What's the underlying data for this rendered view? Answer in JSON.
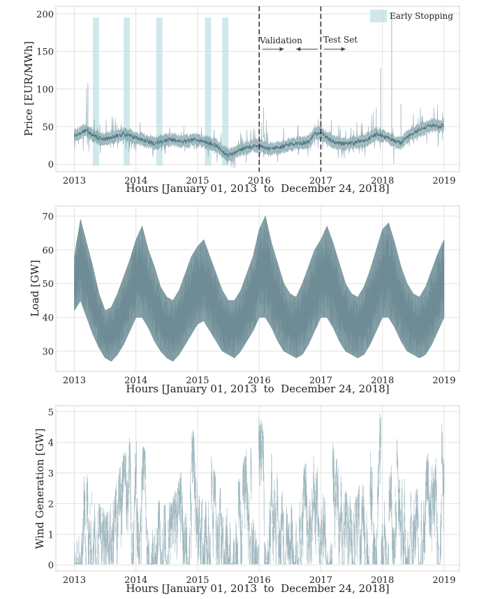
{
  "chart_data": [
    {
      "type": "line",
      "id": "price",
      "title": "",
      "xlabel": "Hours [January 01, 2013  to  December 24, 2018]",
      "ylabel": "Price [EUR/MWh]",
      "xlim": [
        2012.7,
        2019.25
      ],
      "ylim": [
        -10,
        210
      ],
      "x_ticks": [
        2013,
        2014,
        2015,
        2016,
        2017,
        2018,
        2019
      ],
      "y_ticks": [
        0,
        50,
        100,
        150,
        200
      ],
      "grid": true,
      "series": [
        {
          "name": "Price",
          "color": "#5b8590",
          "x": [
            2013.0,
            2013.1,
            2013.2,
            2013.3,
            2013.4,
            2013.5,
            2013.6,
            2013.7,
            2013.8,
            2013.9,
            2014.0,
            2014.1,
            2014.2,
            2014.3,
            2014.4,
            2014.5,
            2014.6,
            2014.7,
            2014.8,
            2014.9,
            2015.0,
            2015.1,
            2015.2,
            2015.3,
            2015.4,
            2015.5,
            2015.6,
            2015.7,
            2015.8,
            2015.9,
            2016.0,
            2016.1,
            2016.2,
            2016.3,
            2016.4,
            2016.5,
            2016.6,
            2016.7,
            2016.8,
            2016.9,
            2017.0,
            2017.1,
            2017.2,
            2017.3,
            2017.4,
            2017.5,
            2017.6,
            2017.7,
            2017.8,
            2017.9,
            2018.0,
            2018.1,
            2018.2,
            2018.3,
            2018.4,
            2018.5,
            2018.6,
            2018.7,
            2018.8,
            2018.9,
            2019.0
          ],
          "mean": [
            38,
            42,
            45,
            38,
            35,
            33,
            36,
            38,
            40,
            38,
            35,
            33,
            30,
            28,
            30,
            32,
            33,
            31,
            30,
            32,
            33,
            30,
            28,
            25,
            18,
            12,
            15,
            20,
            22,
            24,
            25,
            22,
            20,
            22,
            24,
            26,
            27,
            28,
            30,
            40,
            42,
            35,
            30,
            28,
            27,
            28,
            30,
            31,
            35,
            40,
            38,
            35,
            30,
            28,
            36,
            42,
            45,
            48,
            52,
            50,
            52
          ],
          "low": [
            25,
            28,
            22,
            20,
            18,
            22,
            25,
            28,
            25,
            22,
            20,
            18,
            14,
            12,
            16,
            18,
            16,
            14,
            15,
            18,
            20,
            16,
            12,
            8,
            3,
            0,
            2,
            5,
            8,
            10,
            10,
            8,
            6,
            8,
            10,
            12,
            14,
            15,
            16,
            22,
            25,
            18,
            15,
            14,
            12,
            14,
            15,
            16,
            18,
            20,
            18,
            15,
            3,
            10,
            18,
            22,
            25,
            28,
            5,
            25,
            30
          ],
          "high": [
            62,
            85,
            108,
            60,
            55,
            50,
            58,
            60,
            62,
            58,
            55,
            52,
            48,
            45,
            48,
            50,
            52,
            50,
            48,
            50,
            55,
            50,
            45,
            40,
            35,
            28,
            32,
            36,
            40,
            42,
            45,
            75,
            38,
            40,
            42,
            44,
            46,
            48,
            55,
            80,
            70,
            60,
            52,
            48,
            46,
            48,
            50,
            52,
            60,
            75,
            128,
            80,
            60,
            55,
            62,
            68,
            72,
            78,
            80,
            75,
            78
          ]
        }
      ],
      "early_stopping_spans": [
        [
          2013.3,
          2013.4
        ],
        [
          2013.8,
          2013.9
        ],
        [
          2014.33,
          2014.43
        ],
        [
          2015.12,
          2015.22
        ],
        [
          2015.4,
          2015.5
        ]
      ],
      "early_stopping_top": 195,
      "validation_lines": [
        2016.0,
        2017.0
      ],
      "legend": {
        "label": "Early Stopping",
        "position": "top-right"
      },
      "annotations": [
        {
          "text": "Validation",
          "x": 2016.05,
          "y": 162
        },
        {
          "text": "Test Set",
          "x": 2017.06,
          "y": 162
        }
      ],
      "arrows": [
        {
          "from": 2016.05,
          "to": 2016.4,
          "y": 153
        },
        {
          "from": 2016.95,
          "to": 2016.6,
          "y": 153
        },
        {
          "from": 2017.05,
          "to": 2017.4,
          "y": 153
        }
      ]
    },
    {
      "type": "line",
      "id": "load",
      "title": "",
      "xlabel": "Hours [January 01, 2013  to  December 24, 2018]",
      "ylabel": "Load [GW]",
      "xlim": [
        2012.7,
        2019.25
      ],
      "ylim": [
        24,
        73
      ],
      "x_ticks": [
        2013,
        2014,
        2015,
        2016,
        2017,
        2018,
        2019
      ],
      "y_ticks": [
        30,
        40,
        50,
        60,
        70
      ],
      "grid": true,
      "series": [
        {
          "name": "Load",
          "color": "#6f8e98",
          "x": [
            2013.0,
            2013.1,
            2013.2,
            2013.3,
            2013.4,
            2013.5,
            2013.6,
            2013.7,
            2013.8,
            2013.9,
            2014.0,
            2014.1,
            2014.2,
            2014.3,
            2014.4,
            2014.5,
            2014.6,
            2014.7,
            2014.8,
            2014.9,
            2015.0,
            2015.1,
            2015.2,
            2015.3,
            2015.4,
            2015.5,
            2015.6,
            2015.7,
            2015.8,
            2015.9,
            2016.0,
            2016.1,
            2016.2,
            2016.3,
            2016.4,
            2016.5,
            2016.6,
            2016.7,
            2016.8,
            2016.9,
            2017.0,
            2017.1,
            2017.2,
            2017.3,
            2017.4,
            2017.5,
            2017.6,
            2017.7,
            2017.8,
            2017.9,
            2018.0,
            2018.1,
            2018.2,
            2018.3,
            2018.4,
            2018.5,
            2018.6,
            2018.7,
            2018.8,
            2018.9,
            2019.0
          ],
          "low": [
            42,
            45,
            40,
            35,
            31,
            28,
            27,
            29,
            32,
            36,
            40,
            40,
            37,
            33,
            30,
            28,
            27,
            29,
            32,
            35,
            38,
            39,
            36,
            33,
            30,
            29,
            28,
            30,
            33,
            36,
            40,
            40,
            37,
            33,
            30,
            29,
            28,
            29,
            32,
            36,
            40,
            40,
            37,
            33,
            30,
            29,
            28,
            29,
            32,
            36,
            40,
            40,
            37,
            33,
            30,
            29,
            28,
            29,
            32,
            36,
            40
          ],
          "high": [
            58,
            69,
            62,
            55,
            47,
            42,
            43,
            47,
            52,
            57,
            63,
            67,
            60,
            55,
            49,
            46,
            45,
            48,
            53,
            58,
            61,
            63,
            58,
            53,
            48,
            45,
            45,
            48,
            53,
            58,
            66,
            70,
            62,
            56,
            50,
            47,
            46,
            50,
            55,
            60,
            63,
            67,
            62,
            56,
            50,
            47,
            46,
            49,
            54,
            60,
            66,
            68,
            62,
            55,
            50,
            47,
            46,
            49,
            54,
            59,
            63
          ]
        }
      ]
    },
    {
      "type": "line",
      "id": "wind",
      "title": "",
      "xlabel": "Hours [January 01, 2013  to  December 24, 2018]",
      "ylabel": "Wind Generation [GW]",
      "xlim": [
        2012.7,
        2019.25
      ],
      "ylim": [
        -0.2,
        5.2
      ],
      "x_ticks": [
        2013,
        2014,
        2015,
        2016,
        2017,
        2018,
        2019
      ],
      "y_ticks": [
        0,
        1,
        2,
        3,
        4,
        5
      ],
      "grid": true,
      "series": [
        {
          "name": "Wind Generation",
          "color": "#8aa7b0",
          "x": [
            2013.0,
            2013.25,
            2013.5,
            2013.75,
            2014.0,
            2014.25,
            2014.5,
            2014.75,
            2015.0,
            2015.25,
            2015.5,
            2015.75,
            2016.0,
            2016.25,
            2016.5,
            2016.75,
            2017.0,
            2017.25,
            2017.5,
            2017.75,
            2018.0,
            2018.25,
            2018.5,
            2018.75,
            2019.0
          ],
          "envelope": [
            3.9,
            3.4,
            3.0,
            4.0,
            4.3,
            3.6,
            3.3,
            4.0,
            4.4,
            4.2,
            3.6,
            4.3,
            4.6,
            4.0,
            3.6,
            4.2,
            4.7,
            4.4,
            3.8,
            4.5,
            4.9,
            5.0,
            4.2,
            4.7,
            4.4
          ]
        }
      ]
    }
  ]
}
